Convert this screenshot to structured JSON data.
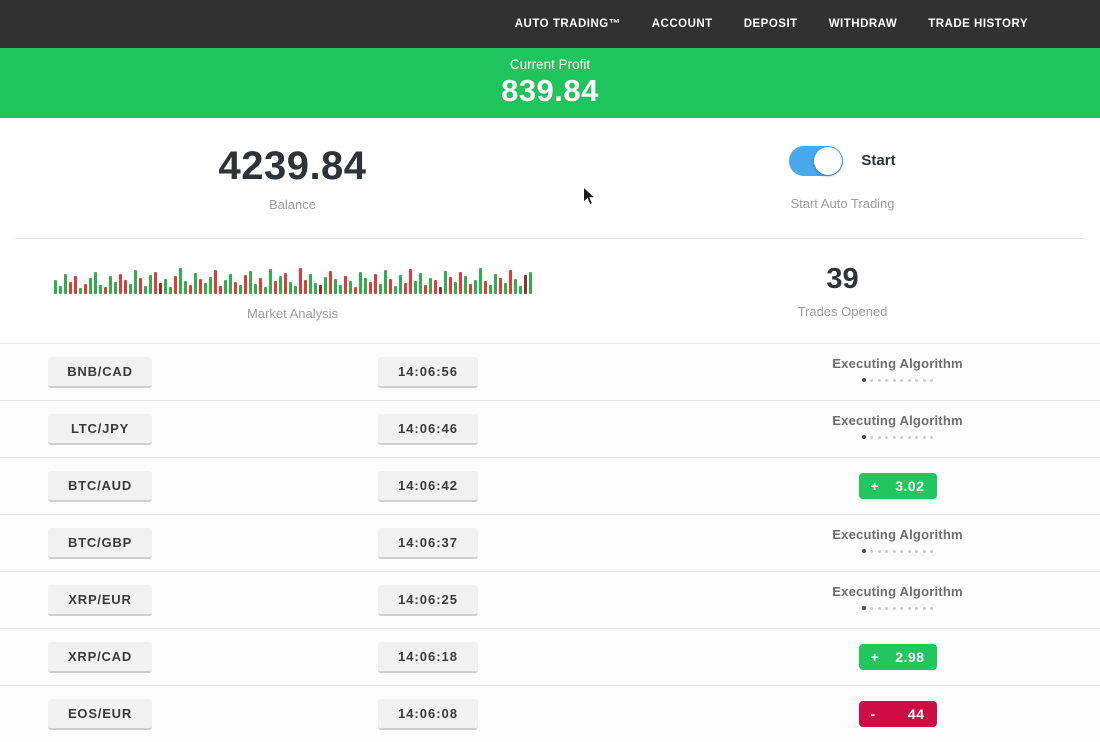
{
  "nav": {
    "items": [
      {
        "label": "AUTO TRADING™"
      },
      {
        "label": "ACCOUNT"
      },
      {
        "label": "DEPOSIT"
      },
      {
        "label": "WITHDRAW"
      },
      {
        "label": "TRADE HISTORY"
      }
    ]
  },
  "banner": {
    "label": "Current Profit",
    "value": "839.84"
  },
  "stats": {
    "balance": {
      "value": "4239.84",
      "label": "Balance"
    },
    "auto_trading": {
      "toggle_label": "Start",
      "caption": "Start Auto Trading",
      "toggle_on": true
    },
    "market_analysis": {
      "label": "Market Analysis"
    },
    "trades_opened": {
      "value": "39",
      "label": "Trades Opened"
    }
  },
  "executing": {
    "label": "Executing Algorithm",
    "dots_total": 10,
    "dots_active_index": 0
  },
  "trades": [
    {
      "pair": "BNB/CAD",
      "time": "14:06:56",
      "status": {
        "type": "executing"
      }
    },
    {
      "pair": "LTC/JPY",
      "time": "14:06:46",
      "status": {
        "type": "executing"
      }
    },
    {
      "pair": "BTC/AUD",
      "time": "14:06:42",
      "status": {
        "type": "result",
        "sign": "+",
        "value": "3.02",
        "color": "green"
      }
    },
    {
      "pair": "BTC/GBP",
      "time": "14:06:37",
      "status": {
        "type": "executing"
      }
    },
    {
      "pair": "XRP/EUR",
      "time": "14:06:25",
      "status": {
        "type": "executing"
      }
    },
    {
      "pair": "XRP/CAD",
      "time": "14:06:18",
      "status": {
        "type": "result",
        "sign": "+",
        "value": "2.98",
        "color": "green"
      }
    },
    {
      "pair": "EOS/EUR",
      "time": "14:06:08",
      "status": {
        "type": "result",
        "sign": "-",
        "value": "44",
        "color": "red"
      }
    }
  ],
  "market_bars": [
    [
      14,
      "g"
    ],
    [
      8,
      "g"
    ],
    [
      20,
      "g"
    ],
    [
      12,
      "r"
    ],
    [
      18,
      "r"
    ],
    [
      6,
      "g"
    ],
    [
      10,
      "r"
    ],
    [
      16,
      "g"
    ],
    [
      22,
      "g"
    ],
    [
      9,
      "g"
    ],
    [
      7,
      "r"
    ],
    [
      18,
      "g"
    ],
    [
      12,
      "g"
    ],
    [
      20,
      "r"
    ],
    [
      14,
      "r"
    ],
    [
      10,
      "g"
    ],
    [
      24,
      "g"
    ],
    [
      16,
      "r"
    ],
    [
      8,
      "g"
    ],
    [
      19,
      "g"
    ],
    [
      22,
      "r"
    ],
    [
      11,
      "m"
    ],
    [
      15,
      "g"
    ],
    [
      7,
      "g"
    ],
    [
      18,
      "r"
    ],
    [
      26,
      "g"
    ],
    [
      13,
      "g"
    ],
    [
      9,
      "r"
    ],
    [
      21,
      "g"
    ],
    [
      15,
      "r"
    ],
    [
      11,
      "g"
    ],
    [
      17,
      "g"
    ],
    [
      24,
      "r"
    ],
    [
      8,
      "r"
    ],
    [
      14,
      "g"
    ],
    [
      20,
      "g"
    ],
    [
      12,
      "r"
    ],
    [
      9,
      "g"
    ],
    [
      19,
      "r"
    ],
    [
      23,
      "g"
    ],
    [
      10,
      "g"
    ],
    [
      16,
      "r"
    ],
    [
      7,
      "g"
    ],
    [
      25,
      "g"
    ],
    [
      13,
      "r"
    ],
    [
      18,
      "g"
    ],
    [
      21,
      "r"
    ],
    [
      12,
      "g"
    ],
    [
      8,
      "g"
    ],
    [
      26,
      "r"
    ],
    [
      14,
      "r"
    ],
    [
      20,
      "g"
    ],
    [
      11,
      "g"
    ],
    [
      9,
      "m"
    ],
    [
      17,
      "g"
    ],
    [
      23,
      "r"
    ],
    [
      15,
      "g"
    ],
    [
      9,
      "g"
    ],
    [
      18,
      "r"
    ],
    [
      13,
      "g"
    ],
    [
      7,
      "r"
    ],
    [
      22,
      "g"
    ],
    [
      16,
      "g"
    ],
    [
      12,
      "r"
    ],
    [
      20,
      "r"
    ],
    [
      10,
      "g"
    ],
    [
      24,
      "g"
    ],
    [
      15,
      "r"
    ],
    [
      8,
      "g"
    ],
    [
      19,
      "g"
    ],
    [
      11,
      "r"
    ],
    [
      25,
      "r"
    ],
    [
      13,
      "g"
    ],
    [
      21,
      "g"
    ],
    [
      9,
      "r"
    ],
    [
      16,
      "g"
    ],
    [
      14,
      "r"
    ],
    [
      7,
      "m"
    ],
    [
      23,
      "g"
    ],
    [
      17,
      "r"
    ],
    [
      12,
      "g"
    ],
    [
      22,
      "r"
    ],
    [
      18,
      "g"
    ],
    [
      10,
      "r"
    ],
    [
      14,
      "g"
    ],
    [
      26,
      "g"
    ],
    [
      13,
      "r"
    ],
    [
      9,
      "g"
    ],
    [
      20,
      "g"
    ],
    [
      16,
      "r"
    ],
    [
      11,
      "g"
    ],
    [
      24,
      "r"
    ],
    [
      15,
      "g"
    ],
    [
      8,
      "g"
    ],
    [
      19,
      "m"
    ],
    [
      22,
      "g"
    ]
  ],
  "colors": {
    "nav_bg": "#313131",
    "banner_green": "#1fc55c",
    "badge_green": "#22c55e",
    "badge_red": "#ce0d45",
    "toggle_blue": "#4aa9ea",
    "bar_green": "#2fae4c",
    "bar_red": "#e23a3a"
  }
}
